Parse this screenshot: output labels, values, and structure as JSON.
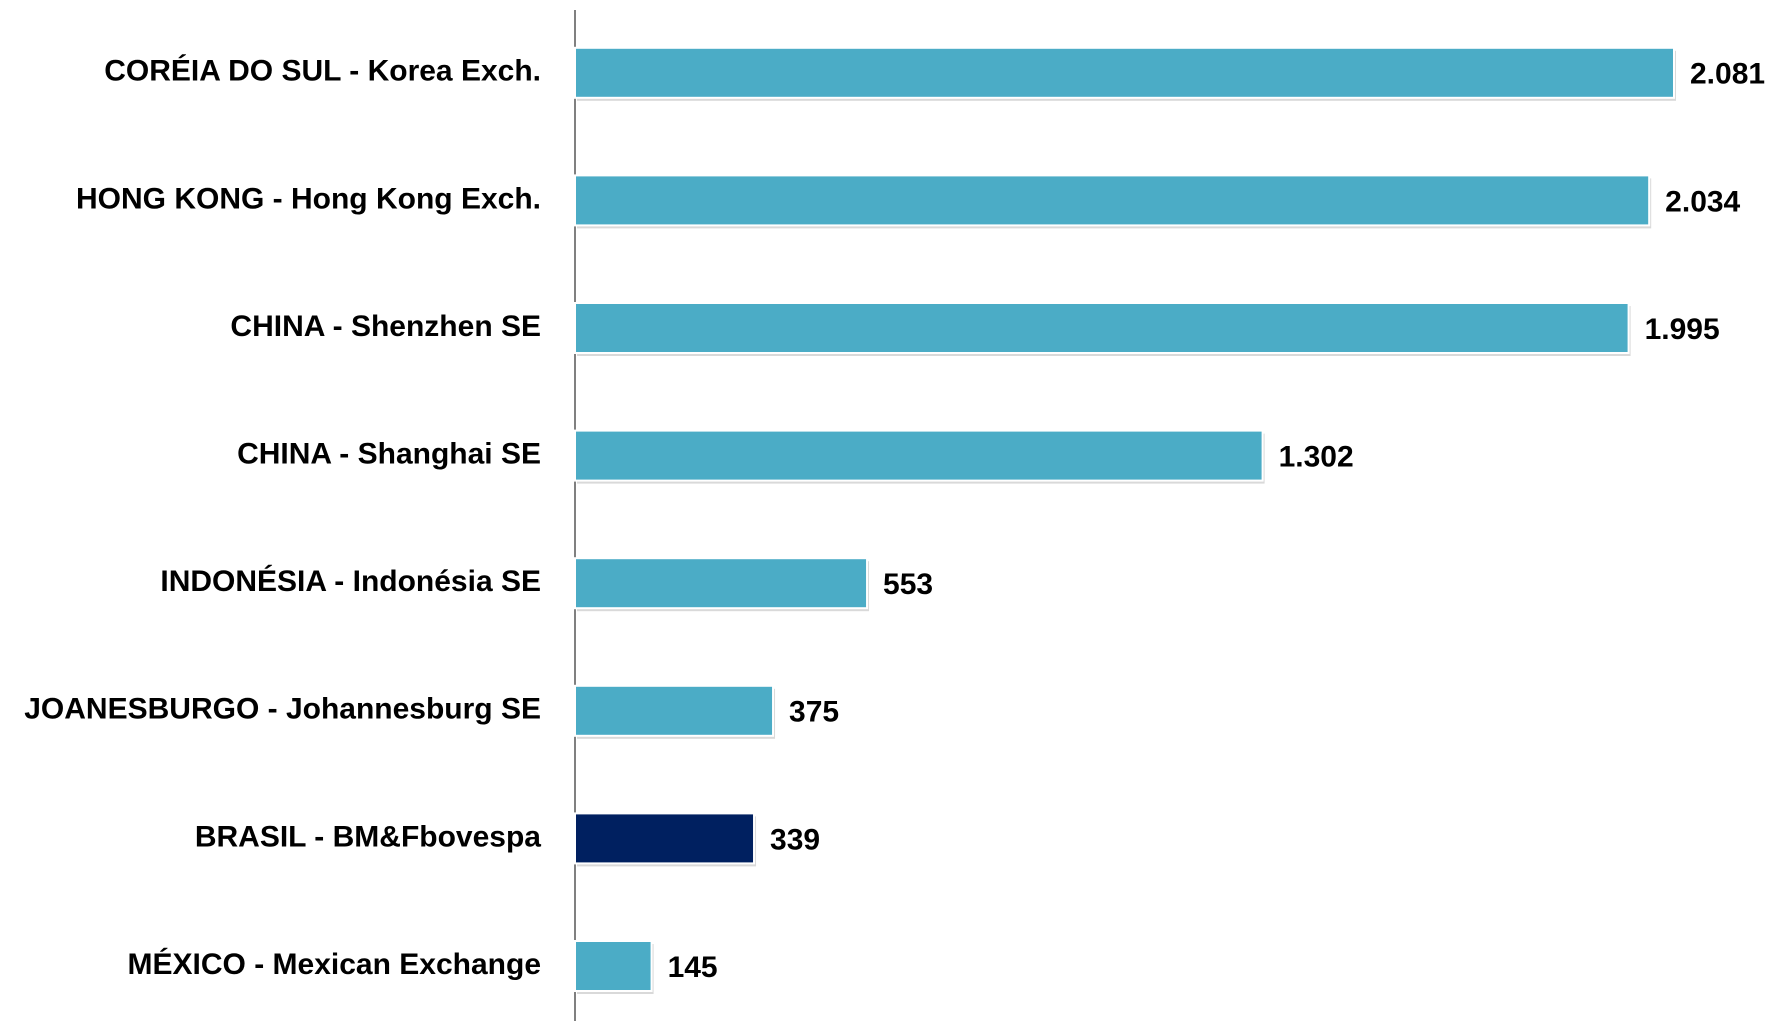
{
  "chart_data": {
    "type": "bar",
    "orientation": "horizontal",
    "categories": [
      "CORÉIA DO SUL - Korea Exch.",
      "HONG KONG - Hong Kong Exch.",
      "CHINA - Shenzhen SE",
      "CHINA - Shanghai SE",
      "INDONÉSIA - Indonésia SE",
      "JOANESBURGO - Johannesburg SE",
      "BRASIL - BM&Fbovespa",
      "MÉXICO - Mexican Exchange"
    ],
    "values": [
      2081,
      2034,
      1995,
      1302,
      553,
      375,
      339,
      145
    ],
    "value_labels": [
      "2.081",
      "2.034",
      "1.995",
      "1.302",
      "553",
      "375",
      "339",
      "145"
    ],
    "colors": [
      "#4bacc6",
      "#4bacc6",
      "#4bacc6",
      "#4bacc6",
      "#4bacc6",
      "#4bacc6",
      "#002060",
      "#4bacc6"
    ]
  }
}
